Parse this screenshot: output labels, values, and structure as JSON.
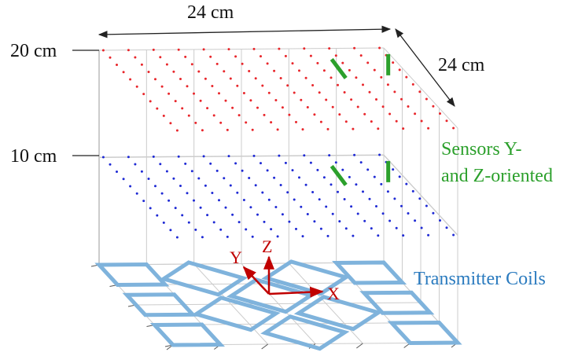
{
  "dimensions": {
    "width_label": "24 cm",
    "depth_label": "24 cm",
    "height_top_label": "20 cm",
    "height_mid_label": "10 cm"
  },
  "annotations": {
    "sensors_line1": "Sensors Y-",
    "sensors_line2": "and Z-oriented",
    "coils": "Transmitter Coils"
  },
  "axes": {
    "x": "X",
    "y": "Y",
    "z": "Z"
  },
  "colors": {
    "top_sensor_grid": "#e8262b",
    "mid_sensor_grid": "#1f2ad4",
    "oriented_sensors": "#2ca02c",
    "sensor_label": "#2ca02c",
    "coils": "#7fb3dc",
    "coil_label": "#2b7bbf",
    "axes": "#c00000",
    "frame": "#c8c8c8"
  },
  "sensor_grid": {
    "rows": 12,
    "cols": 12,
    "layers": [
      "20 cm",
      "10 cm"
    ]
  }
}
